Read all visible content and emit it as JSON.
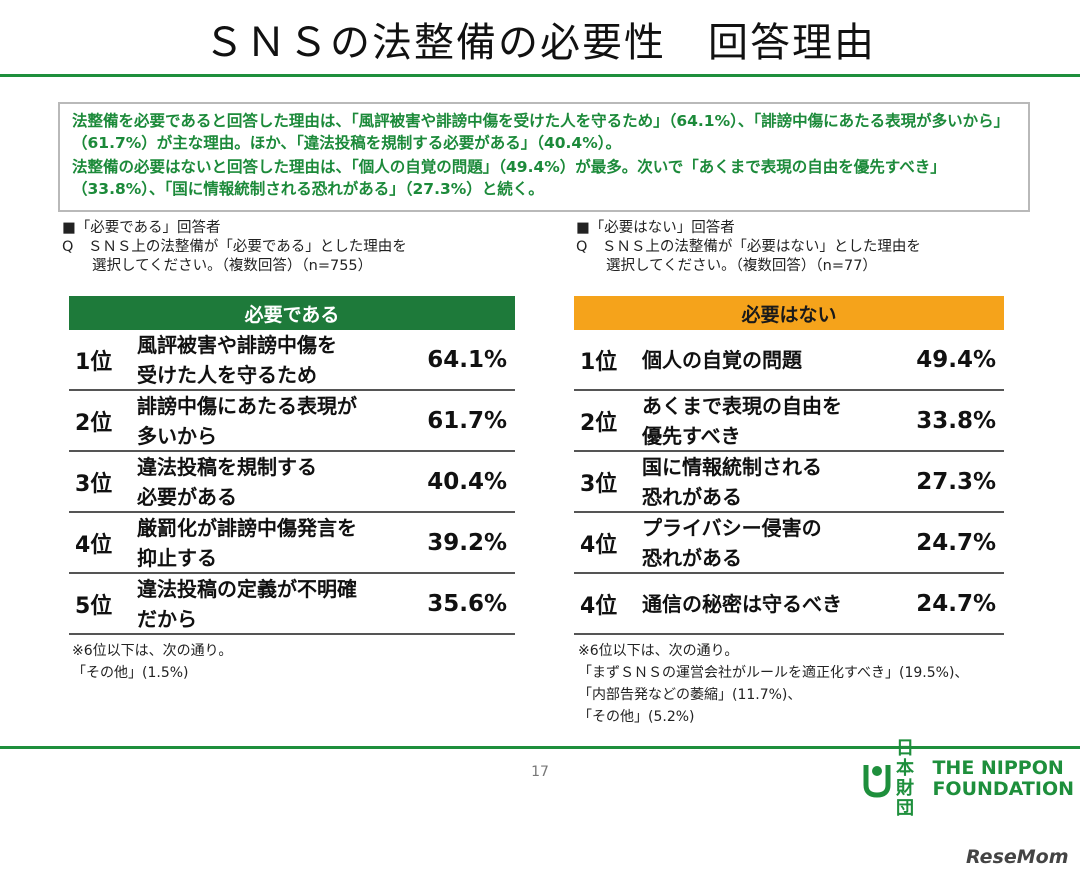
{
  "title": "ＳＮＳの法整備の必要性　回答理由",
  "summary": {
    "line1": "法整備を必要であると回答した理由は、「風評被害や誹謗中傷を受けた人を守るため」（64.1%）、「誹謗中傷にあたる表現が多いから」（61.7%）が主な理由。ほか、「違法投稿を規制する必要がある」（40.4%）。",
    "line2": "法整備の必要はないと回答した理由は、「個人の自覚の問題」（49.4%）が最多。次いで「あくまで表現の自由を優先すべき」（33.8%）、「国に情報統制される恐れがある」（27.3%）と続く。"
  },
  "left": {
    "header": "■「必要である」回答者",
    "question1": "Q　ＳＮＳ上の法整備が「必要である」とした理由を",
    "question2": "選択してください。（複数回答）（n=755）",
    "table_title": "必要である",
    "rows": [
      {
        "rank": "1位",
        "reason1": "風評被害や誹謗中傷を",
        "reason2": "受けた人を守るため",
        "pct": "64.1%"
      },
      {
        "rank": "2位",
        "reason1": "誹謗中傷にあたる表現が",
        "reason2": "多いから",
        "pct": "61.7%"
      },
      {
        "rank": "3位",
        "reason1": "違法投稿を規制する",
        "reason2": "必要がある",
        "pct": "40.4%"
      },
      {
        "rank": "4位",
        "reason1": "厳罰化が誹謗中傷発言を",
        "reason2": "抑止する",
        "pct": "39.2%"
      },
      {
        "rank": "5位",
        "reason1": "違法投稿の定義が不明確",
        "reason2": "だから",
        "pct": "35.6%"
      }
    ],
    "note1": "※6位以下は、次の通り。",
    "note2": "「その他」(1.5%)"
  },
  "right": {
    "header": "■「必要はない」回答者",
    "question1": "Q　ＳＮＳ上の法整備が「必要はない」とした理由を",
    "question2": "選択してください。（複数回答）（n=77）",
    "table_title": "必要はない",
    "rows": [
      {
        "rank": "1位",
        "reason1": "個人の自覚の問題",
        "reason2": "",
        "pct": "49.4%"
      },
      {
        "rank": "2位",
        "reason1": "あくまで表現の自由を",
        "reason2": "優先すべき",
        "pct": "33.8%"
      },
      {
        "rank": "3位",
        "reason1": "国に情報統制される",
        "reason2": "恐れがある",
        "pct": "27.3%"
      },
      {
        "rank": "4位",
        "reason1": "プライバシー侵害の",
        "reason2": "恐れがある",
        "pct": "24.7%"
      },
      {
        "rank": "4位",
        "reason1": "通信の秘密は守るべき",
        "reason2": "",
        "pct": "24.7%"
      }
    ],
    "note1": "※6位以下は、次の通り。",
    "note2": "「まずＳＮＳの運営会社がルールを適正化すべき」(19.5%)、",
    "note3": "「内部告発などの萎縮」(11.7%)、",
    "note4": "「その他」(5.2%)"
  },
  "footer": {
    "page": "17",
    "logo_jp1": "日本",
    "logo_jp2": "財団",
    "logo_en1": "THE NIPPON",
    "logo_en2": "FOUNDATION",
    "watermark": "ReseMom"
  },
  "colors": {
    "green": "#1e7a3a",
    "orange": "#f5a31b",
    "summary_text": "#1c8a3a"
  }
}
